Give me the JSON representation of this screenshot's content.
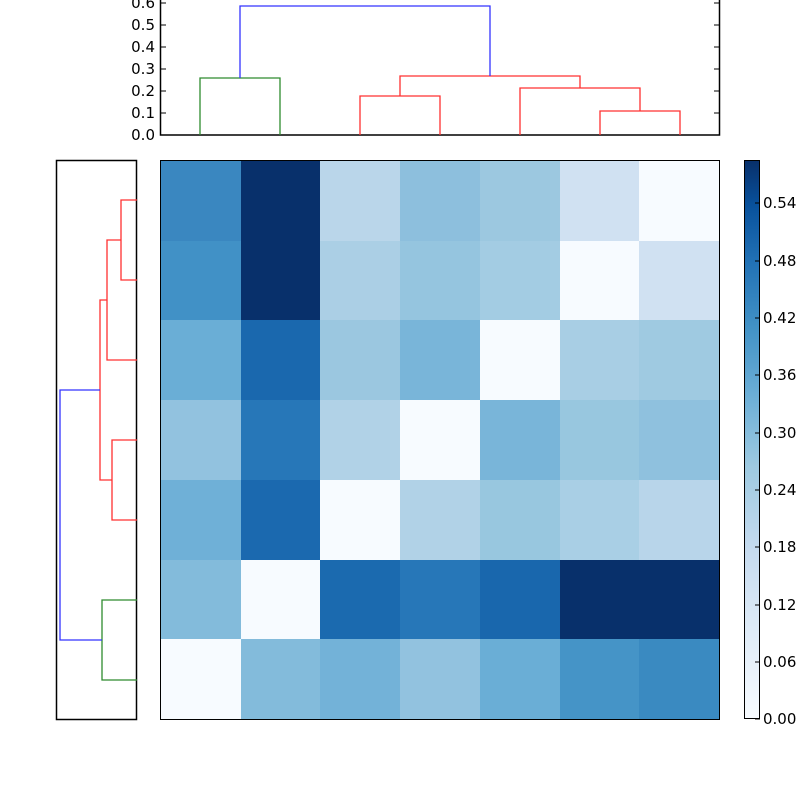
{
  "chart_data": [
    {
      "id": "top-dendrogram",
      "type": "dendrogram",
      "orientation": "top",
      "ylabel": "",
      "ylim": [
        0.0,
        0.6
      ],
      "yticks": [
        "0.0",
        "0.1",
        "0.2",
        "0.3",
        "0.4",
        "0.5",
        "0.6"
      ],
      "leaf_count": 7,
      "links": [
        {
          "color": "#2ca02c",
          "x": [
            0.5,
            0.5,
            1.5,
            1.5
          ],
          "y": [
            0.0,
            0.26,
            0.26,
            0.0
          ]
        },
        {
          "color": "#ff0000",
          "x": [
            2.5,
            2.5,
            3.5,
            3.5
          ],
          "y": [
            0.0,
            0.18,
            0.18,
            0.0
          ]
        },
        {
          "color": "#ff0000",
          "x": [
            5.5,
            5.5,
            6.5,
            6.5
          ],
          "y": [
            0.0,
            0.11,
            0.11,
            0.0
          ]
        },
        {
          "color": "#ff0000",
          "x": [
            4.5,
            4.5,
            6.0,
            6.0
          ],
          "y": [
            0.0,
            0.22,
            0.22,
            0.11
          ]
        },
        {
          "color": "#ff0000",
          "x": [
            3.0,
            3.0,
            5.25,
            5.25
          ],
          "y": [
            0.18,
            0.27,
            0.27,
            0.22
          ]
        },
        {
          "color": "#0000ff",
          "x": [
            1.0,
            1.0,
            4.125,
            4.125
          ],
          "y": [
            0.26,
            0.585,
            0.585,
            0.27
          ]
        }
      ]
    },
    {
      "id": "left-dendrogram",
      "type": "dendrogram",
      "orientation": "left",
      "leaf_count": 7,
      "note": "Same linkage as top dendrogram; leaves ordered bottom-to-top",
      "links": [
        {
          "color": "#ff0000",
          "leaves": [
            0,
            1
          ],
          "height": 0.11
        },
        {
          "color": "#ff0000",
          "leaves": [
            "(0,1)",
            2
          ],
          "height": 0.22
        },
        {
          "color": "#ff0000",
          "leaves": [
            3,
            4
          ],
          "height": 0.18
        },
        {
          "color": "#ff0000",
          "leaves": [
            "(0,1,2)",
            "(3,4)"
          ],
          "height": 0.27
        },
        {
          "color": "#2ca02c",
          "leaves": [
            5,
            6
          ],
          "height": 0.26
        },
        {
          "color": "#0000ff",
          "leaves": [
            "(0..4)",
            "(5,6)"
          ],
          "height": 0.585
        }
      ]
    },
    {
      "id": "heatmap",
      "type": "heatmap",
      "colormap": "Blues",
      "vmin": 0.0,
      "vmax": 0.585,
      "rows": 7,
      "cols": 7,
      "values": [
        [
          0.36,
          0.585,
          0.16,
          0.23,
          0.21,
          0.1,
          0.0
        ],
        [
          0.35,
          0.585,
          0.18,
          0.21,
          0.19,
          0.0,
          0.1
        ],
        [
          0.28,
          0.47,
          0.2,
          0.26,
          0.0,
          0.19,
          0.2
        ],
        [
          0.22,
          0.41,
          0.17,
          0.0,
          0.26,
          0.21,
          0.22
        ],
        [
          0.28,
          0.46,
          0.0,
          0.17,
          0.21,
          0.18,
          0.16
        ],
        [
          0.25,
          0.0,
          0.46,
          0.41,
          0.47,
          0.585,
          0.58
        ],
        [
          0.0,
          0.25,
          0.28,
          0.22,
          0.29,
          0.35,
          0.36
        ]
      ],
      "cell_colors": [
        [
          "#3a87c0",
          "#08306b",
          "#bad6ea",
          "#8dbfdd",
          "#9cc8e0",
          "#d0e1f2",
          "#f7fbff"
        ],
        [
          "#4191c6",
          "#08306b",
          "#abcfe5",
          "#95c5df",
          "#a3cce3",
          "#f7fbff",
          "#d0e1f2"
        ],
        [
          "#6aaed6",
          "#1a68ae",
          "#9bc7e0",
          "#79b5d9",
          "#f7fbff",
          "#a8cee4",
          "#9fcae1"
        ],
        [
          "#92c2df",
          "#2777b8",
          "#b1d2e7",
          "#f7fbff",
          "#79b5d9",
          "#98c7df",
          "#8fc1de"
        ],
        [
          "#6fb0d7",
          "#1b69af",
          "#f7fbff",
          "#b1d2e7",
          "#98c7df",
          "#a9cfe5",
          "#b8d5ea"
        ],
        [
          "#83bbdb",
          "#f7fbff",
          "#1b6aaf",
          "#2777b8",
          "#1967ad",
          "#08306b",
          "#08306b"
        ],
        [
          "#f7fbff",
          "#83bbdb",
          "#73b2d8",
          "#92c2df",
          "#6aaed6",
          "#4594c7",
          "#3a8ac1"
        ]
      ]
    },
    {
      "id": "colorbar",
      "type": "colorbar",
      "colormap": "Blues",
      "range": [
        0.0,
        0.585
      ],
      "ticks": [
        "0.00",
        "0.06",
        "0.12",
        "0.18",
        "0.24",
        "0.30",
        "0.36",
        "0.42",
        "0.48",
        "0.54"
      ]
    }
  ],
  "top_axis": {
    "tick_labels": [
      "0.0",
      "0.1",
      "0.2",
      "0.3",
      "0.4",
      "0.5",
      "0.6"
    ]
  },
  "colorbar_axis": {
    "tick_labels": [
      "0.00",
      "0.06",
      "0.12",
      "0.18",
      "0.24",
      "0.30",
      "0.36",
      "0.42",
      "0.48",
      "0.54"
    ]
  }
}
